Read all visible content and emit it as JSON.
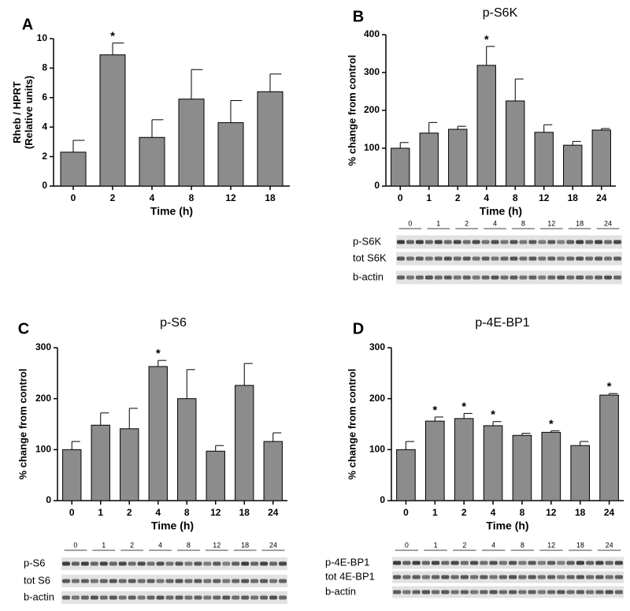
{
  "chart_data": [
    {
      "type": "bar",
      "letter": "A",
      "xlabel": "Time (h)",
      "ylabel": [
        "Rheb / HPRT",
        "(Relative units)"
      ],
      "categories": [
        "0",
        "2",
        "4",
        "8",
        "12",
        "18"
      ],
      "values": [
        2.3,
        8.9,
        3.3,
        5.9,
        4.3,
        6.4
      ],
      "errors": [
        0.8,
        0.8,
        1.2,
        2.0,
        1.5,
        1.2
      ],
      "significance": [
        null,
        "*",
        null,
        null,
        null,
        null
      ],
      "color": "#8c8c8c",
      "ylim": [
        0,
        10
      ],
      "yticks": [
        0,
        2,
        4,
        6,
        8,
        10
      ]
    },
    {
      "type": "bar",
      "letter": "B",
      "title": "p-S6K",
      "xlabel": "Time (h)",
      "ylabel": "% change from control",
      "categories": [
        "0",
        "1",
        "2",
        "4",
        "8",
        "12",
        "18",
        "24"
      ],
      "values": [
        100,
        140,
        150,
        319,
        225,
        142,
        108,
        148
      ],
      "errors": [
        15,
        28,
        8,
        50,
        58,
        20,
        10,
        4
      ],
      "significance": [
        null,
        null,
        null,
        "*",
        null,
        null,
        null,
        null
      ],
      "color": "#8c8c8c",
      "ylim": [
        0,
        400
      ],
      "yticks": [
        0,
        100,
        200,
        300,
        400
      ],
      "blot": {
        "lanes": [
          "0",
          "1",
          "2",
          "4",
          "8",
          "12",
          "18",
          "24"
        ],
        "rows": [
          "p-S6K",
          "tot S6K",
          "b-actin"
        ]
      }
    },
    {
      "type": "bar",
      "letter": "C",
      "title": "p-S6",
      "xlabel": "Time (h)",
      "ylabel": "% change from control",
      "categories": [
        "0",
        "1",
        "2",
        "4",
        "8",
        "12",
        "18",
        "24"
      ],
      "values": [
        100,
        148,
        141,
        263,
        200,
        97,
        226,
        116
      ],
      "errors": [
        16,
        24,
        40,
        12,
        57,
        11,
        43,
        17
      ],
      "significance": [
        null,
        null,
        null,
        "*",
        null,
        null,
        null,
        null
      ],
      "color": "#8c8c8c",
      "ylim": [
        0,
        300
      ],
      "yticks": [
        0,
        100,
        200,
        300
      ],
      "blot": {
        "lanes": [
          "0",
          "1",
          "2",
          "4",
          "8",
          "12",
          "18",
          "24"
        ],
        "rows": [
          "p-S6",
          "tot S6",
          "b-actin"
        ]
      }
    },
    {
      "type": "bar",
      "letter": "D",
      "title": "p-4E-BP1",
      "xlabel": "Time (h)",
      "ylabel": "% change from control",
      "categories": [
        "0",
        "1",
        "2",
        "4",
        "8",
        "12",
        "18",
        "24"
      ],
      "values": [
        100,
        156,
        161,
        147,
        128,
        134,
        108,
        207
      ],
      "errors": [
        16,
        8,
        10,
        8,
        4,
        3,
        8,
        3
      ],
      "significance": [
        null,
        "*",
        "*",
        "*",
        null,
        "*",
        null,
        "*"
      ],
      "color": "#8c8c8c",
      "ylim": [
        0,
        300
      ],
      "yticks": [
        0,
        100,
        200,
        300
      ],
      "blot": {
        "lanes": [
          "0",
          "1",
          "2",
          "4",
          "8",
          "12",
          "18",
          "24"
        ],
        "rows": [
          "p-4E-BP1",
          "tot 4E-BP1",
          "b-actin"
        ]
      }
    }
  ]
}
